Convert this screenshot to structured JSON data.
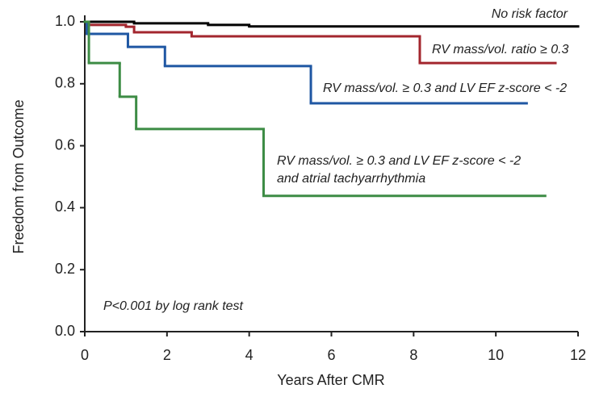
{
  "chart_data": {
    "type": "step",
    "xlabel": "Years After CMR",
    "ylabel": "Freedom from Outcome",
    "annotation": "P<0.001 by log rank test",
    "xlim": [
      0,
      12
    ],
    "xticks": [
      0,
      2,
      4,
      6,
      8,
      10,
      12
    ],
    "ylim": [
      0,
      1
    ],
    "yticks": [
      {
        "value": 0,
        "label": "0.0"
      },
      0.2,
      0.4,
      0.6,
      0.8,
      {
        "value": 1,
        "label": "1.0"
      }
    ],
    "series": [
      {
        "name": "No risk factor",
        "color": "#000000",
        "x": [
          0,
          1.2,
          3,
          4,
          12
        ],
        "values": [
          1.0,
          0.995,
          0.99,
          0.985,
          0.985
        ]
      },
      {
        "name": "RV mass/vol. ratio ≥ 0.3",
        "color": "#a3262e",
        "x": [
          0,
          0.1,
          1.0,
          1.2,
          2.6,
          8.15,
          11.45
        ],
        "values": [
          1.0,
          0.99,
          0.984,
          0.966,
          0.953,
          0.867,
          0.867
        ]
      },
      {
        "name": "RV mass/vol. ≥ 0.3 and LV EF z-score < -2",
        "color": "#1f57a3",
        "x": [
          0,
          0.05,
          1.05,
          1.95,
          5.5,
          10.75
        ],
        "values": [
          1.0,
          0.961,
          0.919,
          0.857,
          0.737,
          0.737
        ]
      },
      {
        "name": "RV mass/vol. ≥ 0.3 and LV EF z-score < -2\nand atrial tachyarrhythmia",
        "color": "#3d8c45",
        "x": [
          0,
          0.1,
          0.85,
          1.25,
          4.35,
          11.2
        ],
        "values": [
          1.0,
          0.867,
          0.758,
          0.654,
          0.438,
          0.438
        ]
      }
    ]
  }
}
